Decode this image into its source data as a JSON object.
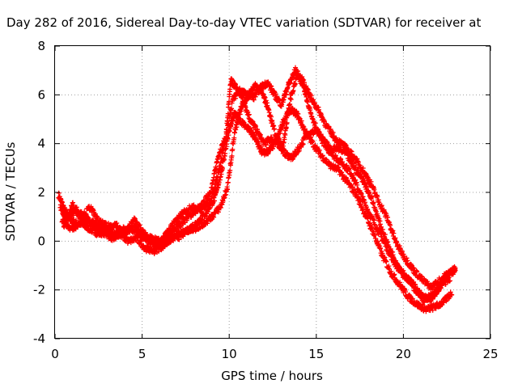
{
  "chart_data": {
    "type": "scatter",
    "title": "Day 282 of 2016, Sidereal Day-to-day VTEC variation (SDTVAR) for receiver at",
    "xlabel": "GPS time / hours",
    "ylabel": "SDTVAR / TECUs",
    "xlim": [
      0,
      25
    ],
    "ylim": [
      -4,
      8
    ],
    "xticks": [
      "0",
      "5",
      "10",
      "15",
      "20",
      "25"
    ],
    "yticks": [
      "-4",
      "-2",
      "0",
      "2",
      "4",
      "6",
      "8"
    ],
    "grid": true,
    "marker": "plus",
    "series": [
      {
        "color": "#ff0000",
        "tracks": [
          {
            "x": [
              0.2,
              0.6,
              1.0,
              1.5,
              2.0,
              2.5,
              3.0,
              3.5,
              4.0,
              4.5,
              5.0,
              5.5,
              6.0,
              6.5,
              7.0,
              7.5,
              8.0,
              8.5,
              9.0,
              9.4,
              9.8,
              10.1,
              10.4,
              10.8,
              11.2,
              11.6,
              12.0,
              12.4,
              12.8,
              13.2,
              13.6,
              14.0,
              14.5,
              15.0,
              15.5,
              16.0,
              16.5,
              17.0,
              17.5,
              18.0,
              18.5,
              19.0,
              19.5,
              20.0,
              20.5,
              21.0,
              21.5,
              22.0,
              22.5,
              23.0
            ],
            "y": [
              1.9,
              1.2,
              0.8,
              0.7,
              0.5,
              0.3,
              0.4,
              0.2,
              0.3,
              0.6,
              0.2,
              0.0,
              -0.1,
              0.2,
              0.6,
              0.9,
              1.2,
              1.5,
              2.2,
              3.6,
              4.2,
              6.6,
              6.3,
              5.8,
              5.0,
              4.5,
              4.0,
              4.2,
              4.0,
              3.6,
              3.4,
              3.8,
              4.4,
              4.5,
              4.1,
              3.5,
              3.2,
              2.8,
              2.0,
              1.2,
              0.5,
              -0.2,
              -0.9,
              -1.4,
              -1.7,
              -2.2,
              -2.4,
              -2.0,
              -1.4,
              -1.1
            ]
          },
          {
            "x": [
              0.3,
              0.7,
              1.2,
              1.7,
              2.2,
              2.7,
              3.2,
              3.7,
              4.2,
              4.7,
              5.2,
              5.7,
              6.2,
              6.7,
              7.2,
              7.7,
              8.2,
              8.7,
              9.2,
              9.6,
              10.0,
              10.3,
              10.7,
              11.1,
              11.5,
              11.9,
              12.3,
              12.7,
              13.1,
              13.5,
              13.9,
              14.3,
              14.8,
              15.3,
              15.8,
              16.3,
              16.8,
              17.3,
              17.8,
              18.3,
              18.8,
              19.3,
              19.8,
              20.3,
              20.8,
              21.3,
              21.8,
              22.3,
              22.8
            ],
            "y": [
              1.4,
              0.9,
              1.3,
              1.0,
              0.6,
              0.4,
              0.1,
              0.3,
              0.0,
              0.1,
              -0.3,
              -0.4,
              -0.2,
              0.1,
              0.2,
              0.5,
              0.8,
              1.2,
              1.8,
              3.0,
              4.6,
              5.2,
              4.9,
              4.6,
              4.2,
              3.6,
              3.7,
              4.1,
              4.9,
              5.4,
              5.2,
              4.6,
              4.0,
              3.5,
              3.1,
              2.9,
              2.4,
              1.9,
              1.1,
              0.3,
              -0.6,
              -1.3,
              -1.8,
              -2.3,
              -2.6,
              -2.8,
              -2.7,
              -2.5,
              -2.1
            ]
          },
          {
            "x": [
              0.4,
              0.9,
              1.4,
              1.9,
              2.4,
              2.9,
              3.4,
              3.9,
              4.4,
              4.9,
              5.4,
              5.9,
              6.4,
              6.9,
              7.4,
              7.9,
              8.4,
              8.9,
              9.3,
              9.7,
              10.2,
              10.6,
              11.0,
              11.4,
              11.8,
              12.2,
              12.6,
              13.0,
              13.4,
              13.8,
              14.2,
              14.6,
              15.1,
              15.6,
              16.1,
              16.6,
              17.1,
              17.6,
              18.1,
              18.6,
              19.1,
              19.6,
              20.1,
              20.6,
              21.1,
              21.6,
              22.1,
              22.6,
              23.0
            ],
            "y": [
              0.9,
              0.5,
              0.7,
              0.9,
              0.7,
              0.5,
              0.3,
              0.5,
              0.4,
              0.3,
              0.0,
              -0.2,
              0.3,
              0.8,
              1.2,
              1.4,
              1.3,
              1.6,
              2.6,
              3.9,
              5.8,
              6.2,
              6.0,
              5.9,
              6.3,
              6.5,
              6.0,
              5.6,
              6.4,
              7.0,
              6.6,
              6.0,
              5.4,
              4.7,
              4.2,
              3.9,
              3.5,
              3.0,
              2.4,
              1.6,
              0.9,
              -0.1,
              -0.7,
              -1.2,
              -1.6,
              -1.9,
              -1.6,
              -1.3,
              -1.2
            ]
          },
          {
            "x": [
              0.5,
              1.0,
              1.5,
              2.0,
              2.5,
              3.0,
              3.5,
              4.0,
              4.5,
              5.0,
              5.5,
              6.0,
              6.5,
              7.0,
              7.5,
              8.0,
              8.5,
              9.0,
              9.5,
              9.9,
              10.3,
              10.7,
              11.1,
              11.5,
              11.9,
              12.3,
              12.7,
              13.1,
              13.5,
              13.9,
              14.3,
              14.7,
              15.2,
              15.7,
              16.2,
              16.7,
              17.2,
              17.7,
              18.2,
              18.7,
              19.2,
              19.7,
              20.2,
              20.7,
              21.2,
              21.7,
              22.2,
              22.7
            ],
            "y": [
              0.6,
              1.5,
              0.9,
              1.4,
              0.8,
              0.6,
              0.7,
              0.2,
              0.9,
              0.4,
              0.1,
              0.0,
              0.0,
              0.3,
              0.4,
              0.5,
              0.7,
              1.0,
              1.4,
              2.2,
              4.4,
              5.5,
              6.0,
              6.4,
              6.1,
              5.3,
              4.2,
              3.9,
              5.8,
              6.8,
              6.3,
              5.2,
              4.3,
              3.7,
              3.8,
              3.6,
              3.0,
              2.5,
              1.7,
              0.6,
              -0.3,
              -1.0,
              -1.5,
              -2.0,
              -2.4,
              -2.2,
              -1.8,
              -1.5
            ]
          }
        ]
      }
    ]
  }
}
